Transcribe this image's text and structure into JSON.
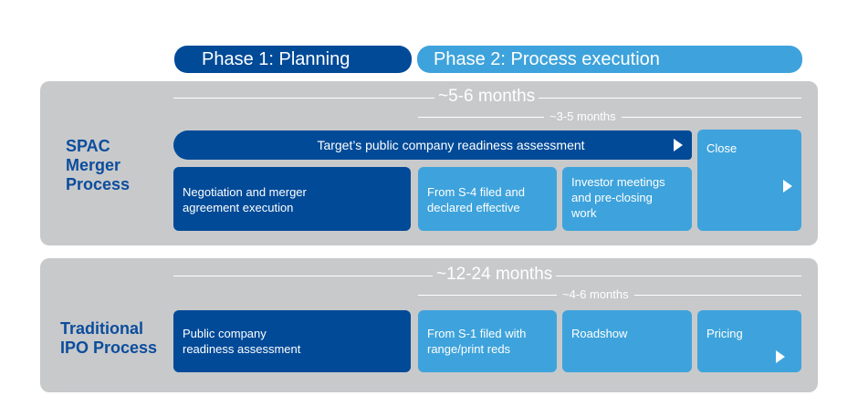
{
  "phases": {
    "phase1": "Phase 1: Planning",
    "phase2": "Phase 2: Process execution",
    "colors": {
      "dark": "#004a98",
      "light": "#3ea3dc",
      "panel": "#c8c9cb",
      "label": "#0b4d9c"
    }
  },
  "spac": {
    "label_lines": [
      "SPAC",
      "Merger",
      "Process"
    ],
    "duration_total": "~5-6 months",
    "duration_sub": "~3-5 months",
    "readiness_bar": "Target’s public company readiness assessment",
    "close": "Close",
    "box1_lines": [
      "Negotiation and merger",
      "agreement execution"
    ],
    "box2_lines": [
      "From S-4 filed and",
      "declared effective"
    ],
    "box3_lines": [
      "Investor meetings",
      "and pre-closing",
      "work"
    ]
  },
  "ipo": {
    "label_lines": [
      "Traditional",
      "IPO Process"
    ],
    "duration_total": "~12-24 months",
    "duration_sub": "~4-6 months",
    "box1_lines": [
      "Public company",
      "readiness assessment"
    ],
    "box2_lines": [
      "From S-1 filed with",
      "range/print reds"
    ],
    "box3": "Roadshow",
    "box4": "Pricing"
  }
}
